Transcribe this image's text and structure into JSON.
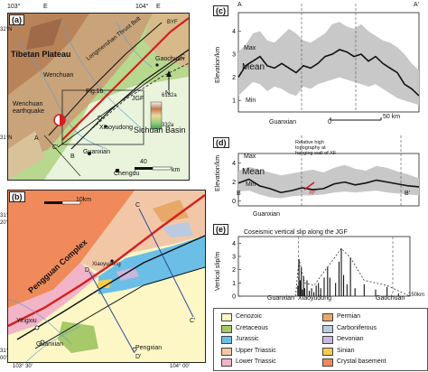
{
  "map_a": {
    "panel_label": "(a)",
    "coords": {
      "top_left": "103°",
      "top_e1": "E",
      "top_right": "104°",
      "top_e2": "E",
      "lat1": "32°N",
      "lat2": "31°N"
    },
    "labels": {
      "tibetan": "Tibetan Plateau",
      "wenchuan": "Wenchuan",
      "wenchuan_eq_1": "Wenchuan",
      "wenchuan_eq_2": "earthquake",
      "fig1b": "Fig.1b",
      "longmenshan": "Longmenshan Thrust Belt",
      "jgf": "JGF",
      "byf": "BYF",
      "gaochuan": "Gaochuan",
      "xiaoyudong": "Xiaoyudong",
      "guanxian": "Guanxian",
      "sichuan": "Sichuan Basin",
      "chengdu": "Chengdu",
      "c": "C",
      "cp": "C'",
      "a": "A",
      "b": "B",
      "d": "D",
      "north": "N",
      "scale": "40",
      "scale_km": "km"
    },
    "elev_legend": {
      "max": "6132a",
      "min": "332a"
    }
  },
  "map_b": {
    "panel_label": "(b)",
    "scale": "10km",
    "labels": {
      "pengguan": "Pengguan Complex",
      "xiaoyudong": "Xiaoyudong",
      "yingxiu": "Yingxiu",
      "guanxian": "Guanxian",
      "pengxian": "Pengxian",
      "c": "C",
      "cp": "C'",
      "d": "D",
      "dp": "D'"
    },
    "coords": {
      "lat1": "31°",
      "lat1n": "20'",
      "lat2": "31°",
      "lat2n": "00'",
      "lon1": "103° 30'",
      "lon2": "104° 00'"
    }
  },
  "panel_c": {
    "panel_label": "(c)",
    "start": "A",
    "end": "A'",
    "ylabel": "Elevation/km",
    "yticks": [
      "4",
      "3",
      "2",
      "1"
    ],
    "labels": {
      "max": "Max",
      "mean": "Mean",
      "min": "Min",
      "guanxian": "Guanxian"
    },
    "scale": {
      "zero": "0",
      "end": "50 km"
    }
  },
  "panel_d": {
    "panel_label": "(d)",
    "ylabel": "Elevation/km",
    "yticks": [
      "4",
      "2",
      "0"
    ],
    "labels": {
      "max": "Max",
      "mean": "Mean",
      "min": "Min",
      "b": "B",
      "bp": "B'",
      "xf": "XF",
      "guanxian": "Guanxian",
      "note_1": "Relative high",
      "note_2": "topography at",
      "note_3": "hanging wall of XF"
    }
  },
  "panel_e": {
    "panel_label": "(e)",
    "title": "Coseismic vertical slip along the JGF",
    "ylabel": "Vertical slip/m",
    "yticks": [
      "4",
      "3",
      "2",
      "1",
      "0"
    ],
    "xlabels": {
      "guanxian": "Guanxian",
      "xiaoyudong": "Xiaoyudong",
      "gaochuan": "Gaochuan",
      "km": "150km"
    }
  },
  "legend": {
    "items": [
      {
        "label": "Cenozoic",
        "color": "#fdf7c6"
      },
      {
        "label": "Permian",
        "color": "#e8a86a"
      },
      {
        "label": "Cretaceous",
        "color": "#a6c969"
      },
      {
        "label": "Carboniferous",
        "color": "#b9cbe0"
      },
      {
        "label": "Jurassic",
        "color": "#6bbfe6"
      },
      {
        "label": "Devonian",
        "color": "#c9b6dc"
      },
      {
        "label": "Upper Triassic",
        "color": "#f2c7a8"
      },
      {
        "label": "Sinian",
        "color": "#f6cc4a"
      },
      {
        "label": "Lower Triassic",
        "color": "#f2b4c6"
      },
      {
        "label": "Crystal basement",
        "color": "#f08a5a"
      }
    ]
  },
  "chart_data": [
    {
      "type": "area",
      "panel": "c",
      "xlabel": "",
      "ylabel": "Elevation/km",
      "ylim": [
        0.5,
        4.8
      ],
      "series": [
        {
          "name": "Max",
          "values": [
            3.1,
            3.4,
            3.9,
            4.0,
            3.6,
            3.5,
            3.8,
            4.1,
            3.9,
            3.6,
            3.5,
            3.7,
            3.9,
            4.3,
            4.4,
            4.2,
            4.1,
            4.3,
            4.0,
            3.8,
            3.6,
            3.5,
            3.3,
            3.0,
            2.6,
            2.3
          ]
        },
        {
          "name": "Mean",
          "values": [
            2.0,
            2.5,
            2.7,
            2.9,
            2.5,
            2.4,
            2.6,
            2.4,
            2.2,
            2.5,
            2.4,
            2.6,
            2.9,
            3.0,
            3.2,
            3.1,
            2.9,
            3.0,
            2.7,
            2.9,
            2.6,
            2.4,
            2.2,
            1.7,
            1.5,
            1.2
          ]
        },
        {
          "name": "Min",
          "values": [
            1.2,
            1.5,
            1.8,
            1.7,
            1.4,
            1.6,
            1.5,
            1.3,
            1.2,
            1.6,
            1.5,
            1.7,
            1.8,
            1.9,
            2.0,
            1.9,
            1.8,
            1.7,
            1.6,
            1.7,
            1.5,
            1.3,
            1.1,
            1.0,
            0.9,
            0.8
          ]
        }
      ]
    },
    {
      "type": "area",
      "panel": "d",
      "ylabel": "Elevation/km",
      "ylim": [
        -0.5,
        5.0
      ],
      "series": [
        {
          "name": "Max",
          "values": [
            3.2,
            3.6,
            3.3,
            3.0,
            2.7,
            2.9,
            3.1,
            3.3,
            3.0,
            3.5,
            3.8,
            3.4,
            3.2,
            3.7,
            3.5,
            3.1,
            2.8,
            2.4
          ]
        },
        {
          "name": "Mean",
          "values": [
            1.9,
            2.3,
            1.6,
            1.3,
            0.9,
            1.1,
            1.4,
            1.2,
            1.3,
            1.8,
            2.0,
            1.7,
            1.9,
            2.2,
            2.0,
            1.8,
            1.6,
            1.5
          ]
        },
        {
          "name": "Min",
          "values": [
            1.0,
            1.1,
            0.7,
            0.4,
            0.3,
            0.5,
            0.6,
            0.6,
            0.7,
            0.9,
            1.0,
            0.9,
            1.0,
            1.1,
            0.9,
            0.8,
            0.7,
            0.6
          ]
        }
      ]
    },
    {
      "type": "bar",
      "panel": "e",
      "title": "Coseismic vertical slip along the JGF",
      "ylabel": "Vertical slip/m",
      "ylim": [
        0,
        4.5
      ],
      "x": [
        52,
        53,
        54,
        55,
        56,
        57,
        58,
        60,
        62,
        64,
        66,
        68,
        70,
        72,
        75,
        78,
        80,
        85,
        88,
        90,
        92,
        95,
        98,
        102,
        110,
        120,
        130,
        140
      ],
      "values": [
        0.8,
        2.8,
        1.2,
        2.2,
        0.5,
        1.5,
        0.6,
        1.2,
        0.4,
        0.6,
        0.3,
        0.8,
        1.0,
        0.6,
        1.4,
        2.2,
        1.4,
        1.0,
        2.6,
        3.6,
        1.6,
        0.9,
        2.9,
        0.6,
        0.9,
        0.5,
        0.7,
        0.2
      ]
    }
  ]
}
